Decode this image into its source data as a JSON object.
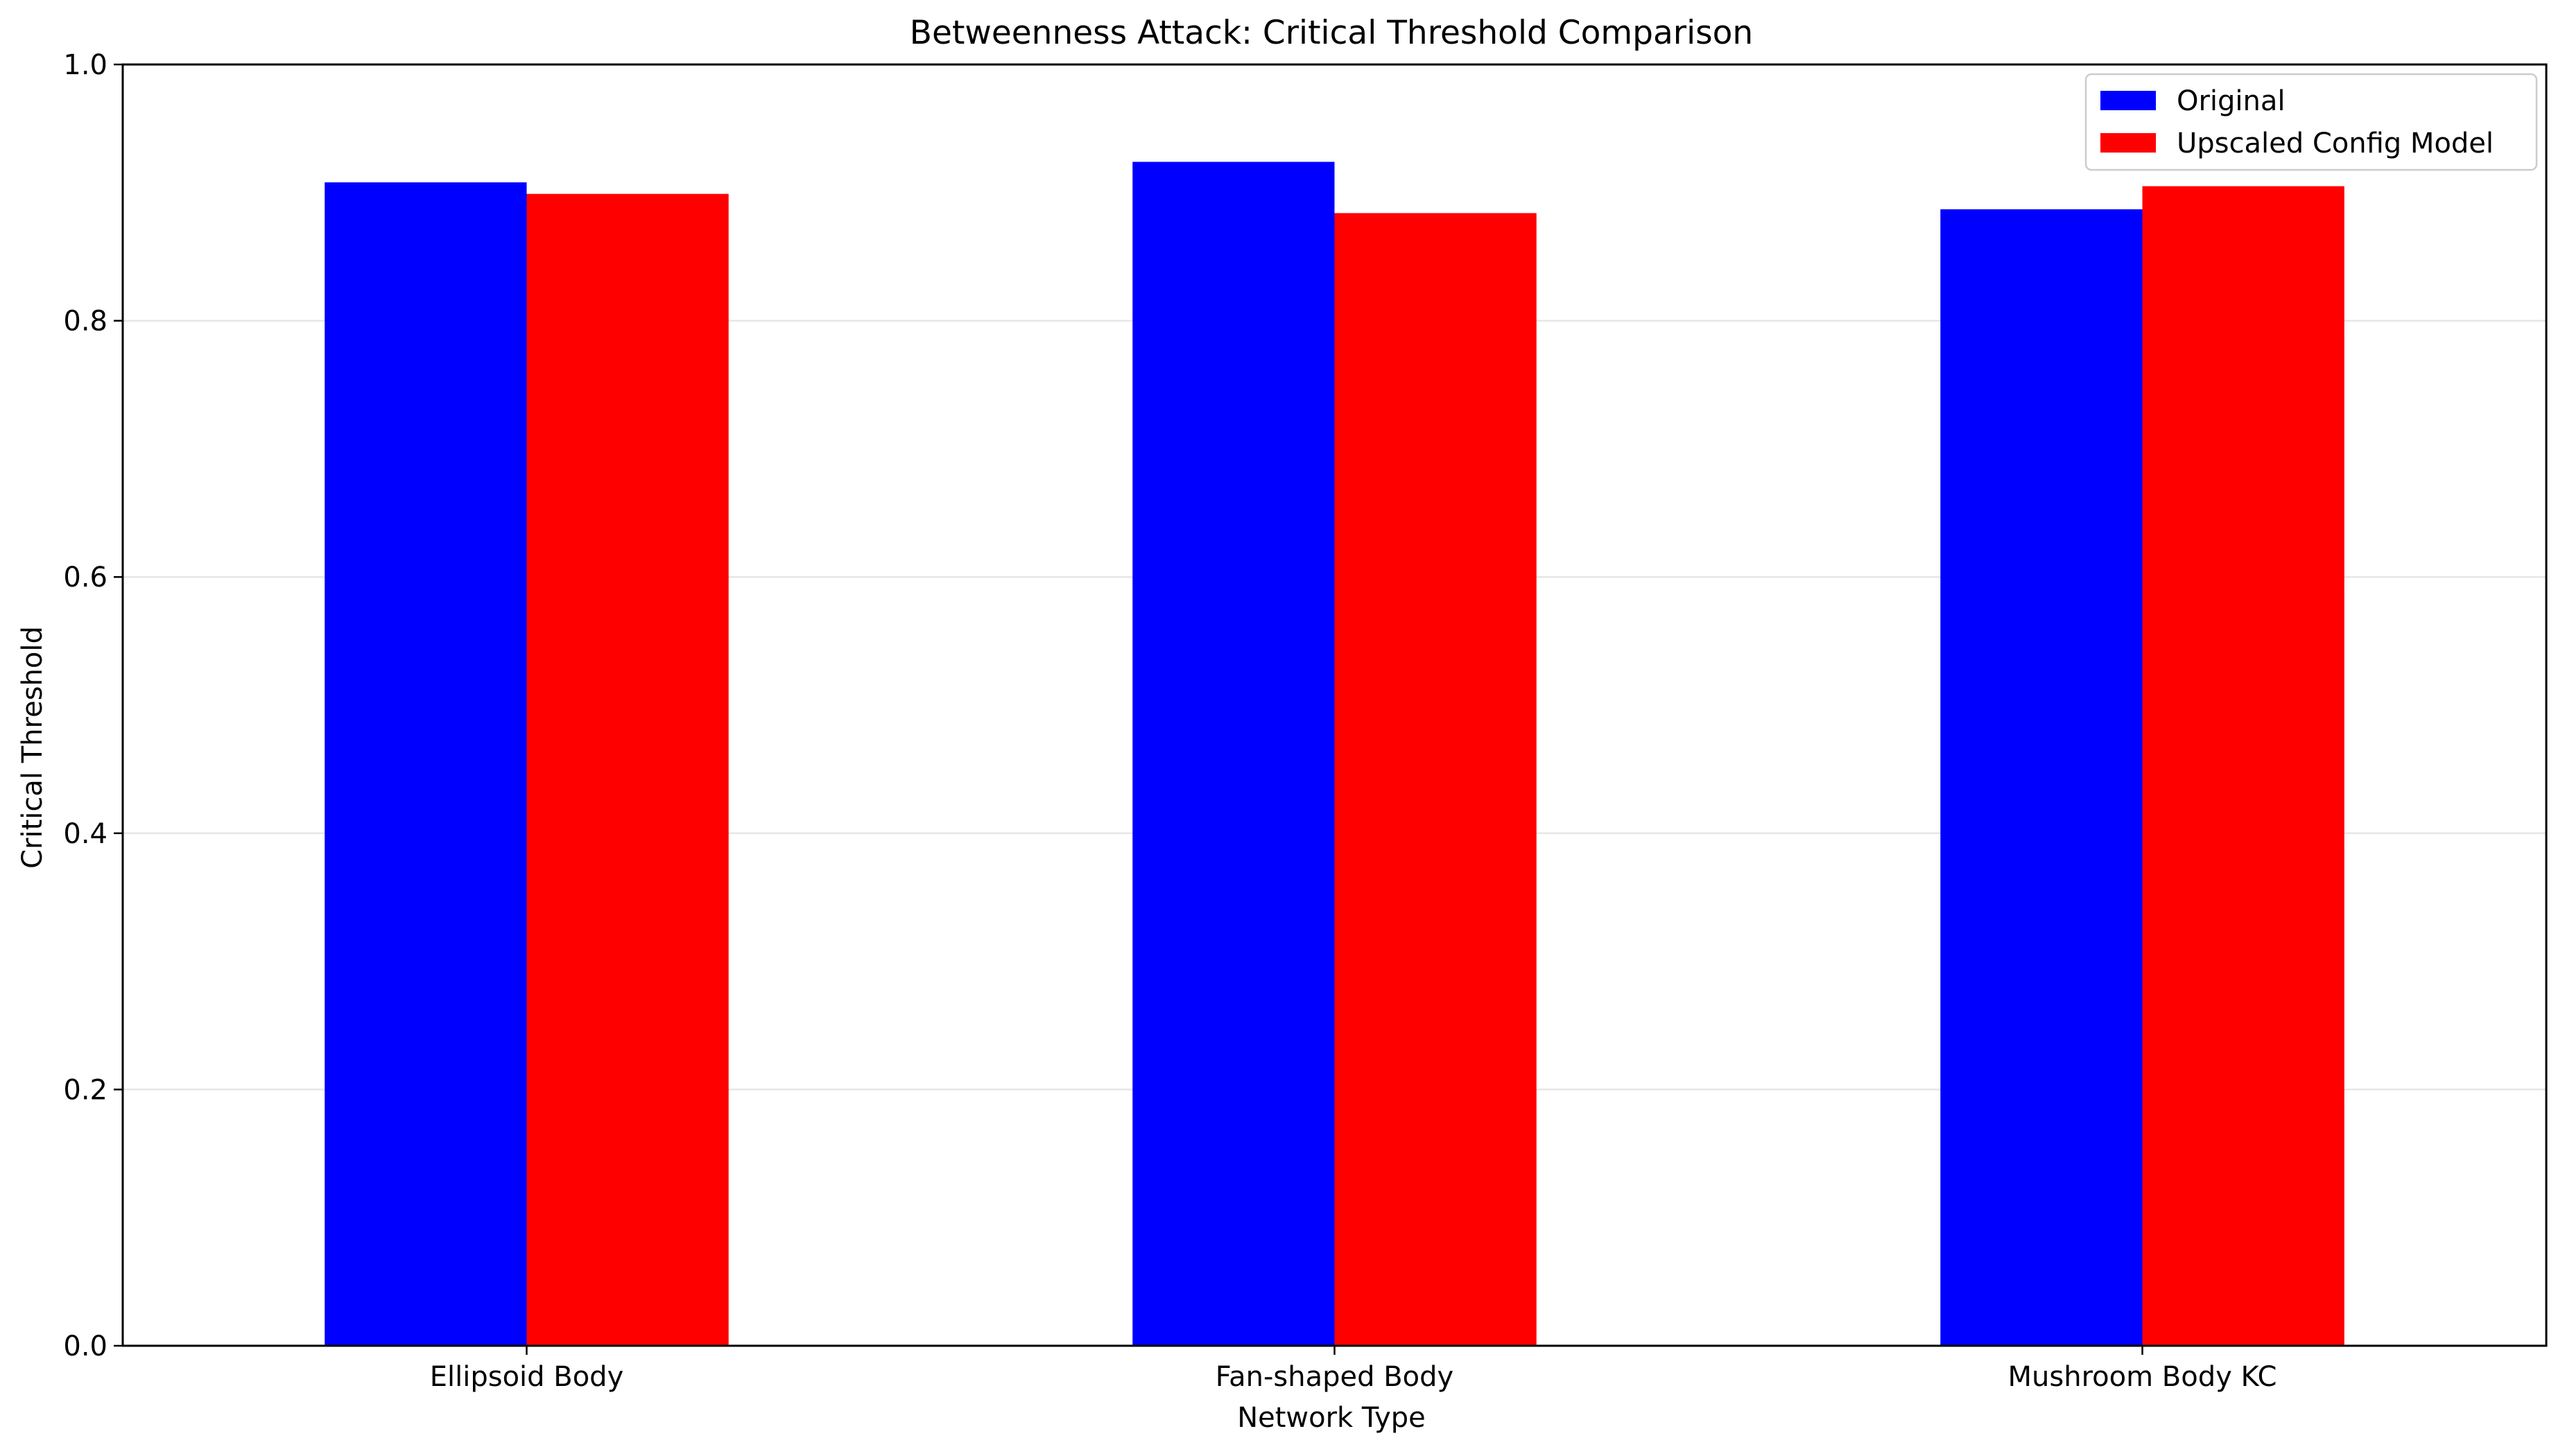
{
  "chart_data": {
    "type": "bar",
    "title": "Betweenness Attack: Critical Threshold Comparison",
    "xlabel": "Network Type",
    "ylabel": "Critical Threshold",
    "categories": [
      "Ellipsoid Body",
      "Fan-shaped Body",
      "Mushroom Body KC"
    ],
    "series": [
      {
        "name": "Original",
        "color": "#0000ff",
        "values": [
          0.908,
          0.924,
          0.887
        ]
      },
      {
        "name": "Upscaled Config Model",
        "color": "#ff0000",
        "values": [
          0.899,
          0.884,
          0.905
        ]
      }
    ],
    "ylim": [
      0,
      1.0
    ],
    "yticks": [
      "0.0",
      "0.2",
      "0.4",
      "0.6",
      "0.8",
      "1.0"
    ],
    "grid": "horizontal",
    "legend_position": "top-right"
  }
}
